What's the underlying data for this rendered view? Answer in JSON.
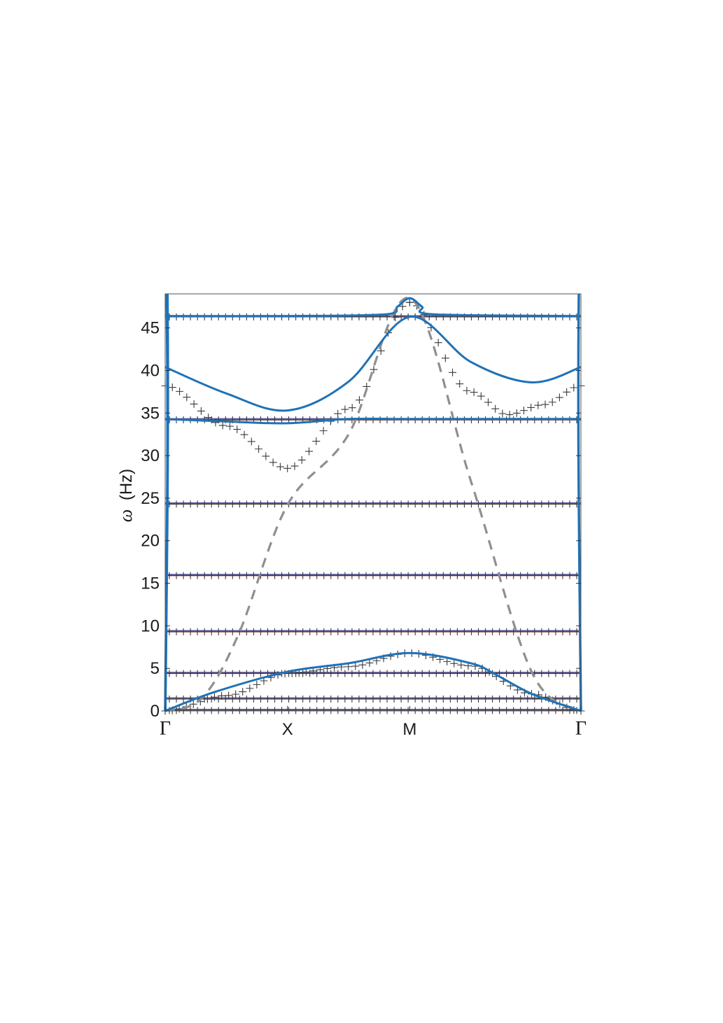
{
  "chart_data": {
    "type": "line",
    "title": "",
    "xlabel": "",
    "ylabel_symbol": "ω",
    "ylabel_unit": "(Hz)",
    "xlim": [
      0,
      3.4
    ],
    "ylim": [
      0,
      49
    ],
    "x_ticks": [
      {
        "x": 0,
        "label": "Γ",
        "greek": true
      },
      {
        "x": 1,
        "label": "X",
        "greek": false
      },
      {
        "x": 2,
        "label": "M",
        "greek": false
      },
      {
        "x": 3.4,
        "label": "Γ",
        "greek": true
      }
    ],
    "y_ticks": [
      0,
      5,
      10,
      15,
      20,
      25,
      30,
      35,
      40,
      45
    ],
    "grid": false,
    "colors": {
      "blue": "#1f72b8",
      "dashed": "#8f8f8f",
      "red": "#d62728",
      "navy": "#3b3d8a",
      "marker": "#3a3a3a"
    },
    "flat_band_levels": [
      0.05,
      1.4,
      4.4,
      9.3,
      15.9,
      24.3,
      34.2,
      46.3
    ],
    "solid_curves": [
      {
        "x": [
          0,
          0.4,
          1,
          1.5,
          2,
          2.5,
          2.7,
          3.0,
          3.4
        ],
        "y": [
          0,
          2.2,
          4.6,
          5.6,
          6.8,
          5.6,
          4.3,
          2.0,
          0
        ]
      },
      {
        "x": [
          0,
          0.5,
          1,
          1.5,
          2,
          2.5,
          3.0,
          3.4
        ],
        "y": [
          40.4,
          37.3,
          35.3,
          38.7,
          46.3,
          41.0,
          38.6,
          40.4
        ]
      },
      {
        "x": [
          0,
          0.5,
          1,
          1.5,
          2,
          2.5,
          3.0,
          3.4
        ],
        "y": [
          34.3,
          34.0,
          33.8,
          34.3,
          34.3,
          34.3,
          34.3,
          34.3
        ]
      },
      {
        "x": [
          0,
          1,
          1.8,
          1.9,
          2,
          2.1,
          2.2,
          3.4
        ],
        "y": [
          46.4,
          46.4,
          46.6,
          47.5,
          48.5,
          47.5,
          46.6,
          46.4
        ]
      }
    ],
    "dashed_curve": {
      "x": [
        0,
        0.3,
        0.6,
        1.0,
        1.5,
        2.0,
        2.5,
        3.0,
        3.4
      ],
      "y": [
        0,
        1.5,
        9.0,
        24.2,
        32.5,
        48.5,
        27.0,
        4.5,
        0
      ]
    },
    "marker_curves": [
      {
        "x": [
          0,
          0.5,
          1.0,
          1.5,
          2.0
        ],
        "y": [
          38.2,
          33.5,
          28.5,
          35.5,
          48.0
        ]
      },
      {
        "x": [
          2.0,
          2.5,
          2.8,
          3.1,
          3.4
        ],
        "y": [
          48.0,
          37.5,
          34.8,
          36.0,
          38.2
        ]
      },
      {
        "x": [
          0,
          0.5,
          1.0,
          1.5,
          2.0,
          2.5,
          3.0,
          3.4
        ],
        "y": [
          0,
          1.8,
          4.4,
          5.2,
          6.8,
          5.3,
          2.0,
          0
        ]
      }
    ]
  }
}
